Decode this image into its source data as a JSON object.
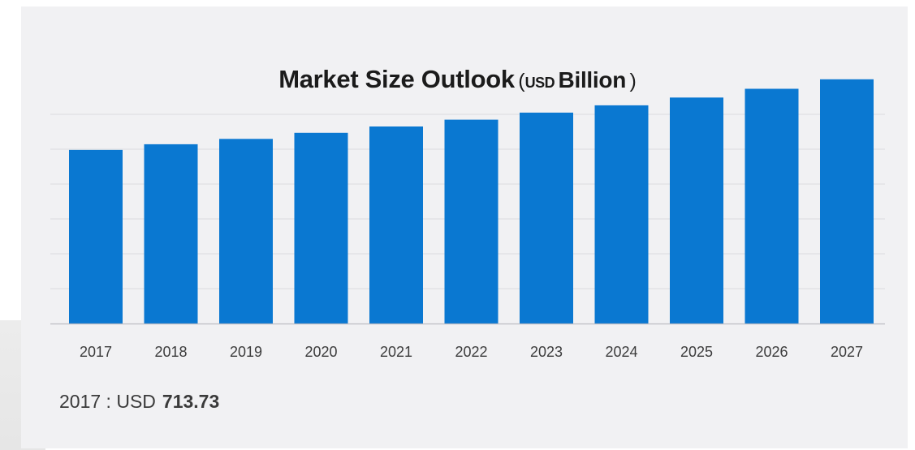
{
  "colors": {
    "bar": "#0a78d1",
    "panel_background": "#f1f1f3",
    "grid": "#dcdcdf",
    "text": "#1b1b1b"
  },
  "title": {
    "main": "Market Size Outlook",
    "open_paren": "(",
    "unit_small": "USD",
    "unit_big": "Billion",
    "close_paren": ")"
  },
  "chart_data": {
    "type": "bar",
    "categories": [
      "2017",
      "2018",
      "2019",
      "2020",
      "2021",
      "2022",
      "2023",
      "2024",
      "2025",
      "2026",
      "2027"
    ],
    "values": [
      713.73,
      737,
      759,
      784,
      810,
      838,
      867,
      897,
      929,
      965,
      1004
    ],
    "title": "Market Size Outlook (USD Billion)",
    "xlabel": "",
    "ylabel": "",
    "ylim": [
      0,
      1200
    ],
    "grid": true,
    "y_tick_labels_shown": false
  },
  "footer": {
    "label": "2017 : USD",
    "value": "713.73"
  }
}
